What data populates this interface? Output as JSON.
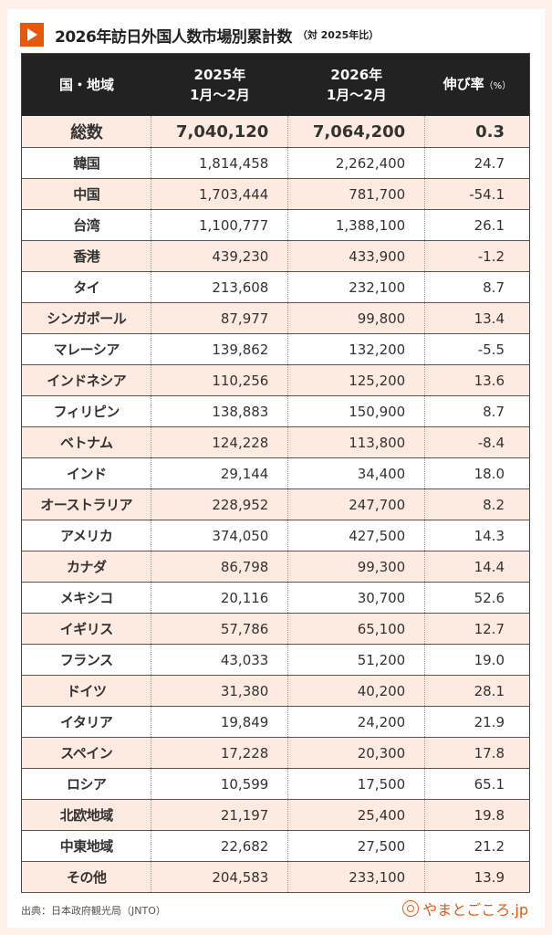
{
  "title": "2026年訪日外国人数市場別累計数",
  "title_sub": "（対 2025年比）",
  "icon": "play-triangle-icon",
  "accent_color": "#e8580c",
  "headers": {
    "region": "国・地域",
    "y2025_line1": "2025年",
    "y2025_line2": "1月～2月",
    "y2026_line1": "2026年",
    "y2026_line2": "1月～2月",
    "rate": "伸び率",
    "rate_unit": "（%）"
  },
  "total": {
    "name": "総数",
    "v2025": "7,040,120",
    "v2026": "7,064,200",
    "rate": "0.3"
  },
  "rows": [
    {
      "name": "韓国",
      "v2025": "1,814,458",
      "v2026": "2,262,400",
      "rate": "24.7"
    },
    {
      "name": "中国",
      "v2025": "1,703,444",
      "v2026": "781,700",
      "rate": "-54.1"
    },
    {
      "name": "台湾",
      "v2025": "1,100,777",
      "v2026": "1,388,100",
      "rate": "26.1"
    },
    {
      "name": "香港",
      "v2025": "439,230",
      "v2026": "433,900",
      "rate": "-1.2"
    },
    {
      "name": "タイ",
      "v2025": "213,608",
      "v2026": "232,100",
      "rate": "8.7"
    },
    {
      "name": "シンガポール",
      "v2025": "87,977",
      "v2026": "99,800",
      "rate": "13.4"
    },
    {
      "name": "マレーシア",
      "v2025": "139,862",
      "v2026": "132,200",
      "rate": "-5.5"
    },
    {
      "name": "インドネシア",
      "v2025": "110,256",
      "v2026": "125,200",
      "rate": "13.6"
    },
    {
      "name": "フィリピン",
      "v2025": "138,883",
      "v2026": "150,900",
      "rate": "8.7"
    },
    {
      "name": "ベトナム",
      "v2025": "124,228",
      "v2026": "113,800",
      "rate": "-8.4"
    },
    {
      "name": "インド",
      "v2025": "29,144",
      "v2026": "34,400",
      "rate": "18.0"
    },
    {
      "name": "オーストラリア",
      "v2025": "228,952",
      "v2026": "247,700",
      "rate": "8.2"
    },
    {
      "name": "アメリカ",
      "v2025": "374,050",
      "v2026": "427,500",
      "rate": "14.3"
    },
    {
      "name": "カナダ",
      "v2025": "86,798",
      "v2026": "99,300",
      "rate": "14.4"
    },
    {
      "name": "メキシコ",
      "v2025": "20,116",
      "v2026": "30,700",
      "rate": "52.6"
    },
    {
      "name": "イギリス",
      "v2025": "57,786",
      "v2026": "65,100",
      "rate": "12.7"
    },
    {
      "name": "フランス",
      "v2025": "43,033",
      "v2026": "51,200",
      "rate": "19.0"
    },
    {
      "name": "ドイツ",
      "v2025": "31,380",
      "v2026": "40,200",
      "rate": "28.1"
    },
    {
      "name": "イタリア",
      "v2025": "19,849",
      "v2026": "24,200",
      "rate": "21.9"
    },
    {
      "name": "スペイン",
      "v2025": "17,228",
      "v2026": "20,300",
      "rate": "17.8"
    },
    {
      "name": "ロシア",
      "v2025": "10,599",
      "v2026": "17,500",
      "rate": "65.1"
    },
    {
      "name": "北欧地域",
      "v2025": "21,197",
      "v2026": "25,400",
      "rate": "19.8"
    },
    {
      "name": "中東地域",
      "v2025": "22,682",
      "v2026": "27,500",
      "rate": "21.2"
    },
    {
      "name": "その他",
      "v2025": "204,583",
      "v2026": "233,100",
      "rate": "13.9"
    }
  ],
  "footer": {
    "source": "出典：日本政府観光局（JNTO）",
    "logo_text": "やまとごころ.jp"
  }
}
